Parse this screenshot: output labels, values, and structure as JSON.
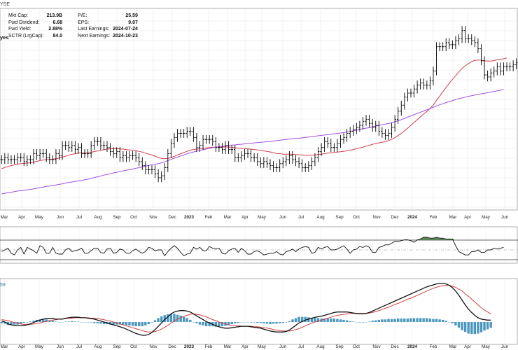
{
  "header": {
    "exchange_fragment": "YSE",
    "partial_label": "yes",
    "stats_left": [
      {
        "label": "Mkt Cap:",
        "value": "213.9B"
      },
      {
        "label": "Fwd Dividend:",
        "value": "6.68"
      },
      {
        "label": "Fwd Yield:",
        "value": "2.88%"
      },
      {
        "label": "SCTR (LrgCap):",
        "value": "84.0"
      }
    ],
    "stats_right": [
      {
        "label": "P/E:",
        "value": "25.59"
      },
      {
        "label": "EPS:",
        "value": "9.07"
      },
      {
        "label": "Last Earnings:",
        "value": "2024-07-24"
      },
      {
        "label": "Next Earnings:",
        "value": "2024-10-23"
      }
    ]
  },
  "chart_data": [
    {
      "type": "ohlc",
      "panel": "price",
      "x_labels": [
        "Mar",
        "Apr",
        "May",
        "Jun",
        "Jul",
        "Aug",
        "Sep",
        "Oct",
        "Nov",
        "Dec",
        "2023",
        "Feb",
        "Mar",
        "Apr",
        "May",
        "Jun",
        "Jul",
        "Aug",
        "Sep",
        "Oct",
        "Nov",
        "Dec",
        "2024",
        "Feb",
        "Mar",
        "Apr",
        "May",
        "Jun"
      ],
      "grid": true,
      "series": [
        {
          "kind": "ohlc",
          "color": "#000000",
          "close": [
            -3,
            -2,
            -3,
            -3,
            -3,
            -2,
            -2,
            -4,
            -3,
            -3,
            0,
            -1,
            0,
            0,
            -2,
            -3,
            -3,
            0,
            -1,
            4,
            4,
            3,
            4,
            2,
            3,
            0,
            0,
            0,
            4,
            6,
            6,
            4,
            4,
            3,
            1,
            0,
            1,
            -2,
            -1,
            -2,
            -1,
            -1,
            -2,
            -4,
            -6,
            -8,
            -8,
            -8,
            -10,
            -12,
            -11,
            -7,
            0,
            5,
            8,
            10,
            10,
            10,
            11,
            11,
            8,
            3,
            4,
            7,
            7,
            7,
            6,
            3,
            3,
            2,
            4,
            2,
            2,
            -2,
            -2,
            -1,
            0,
            0,
            -2,
            -2,
            -4,
            -5,
            -4,
            -5,
            -6,
            -7,
            -7,
            -5,
            -4,
            -3,
            -1,
            -3,
            -4,
            -5,
            -7,
            -7,
            -6,
            -4,
            -2,
            1,
            3,
            6,
            5,
            3,
            3,
            5,
            7,
            8,
            10,
            11,
            12,
            13,
            14,
            16,
            17,
            15,
            13,
            14,
            11,
            10,
            9,
            10,
            13,
            17,
            21,
            24,
            28,
            30,
            30,
            32,
            34,
            35,
            34,
            34,
            36,
            41,
            53,
            53,
            53,
            55,
            54,
            54,
            56,
            57,
            61,
            57,
            57,
            56,
            55,
            52,
            46,
            39,
            38,
            40,
            41,
            43,
            41,
            43,
            43,
            43,
            44,
            45
          ]
        },
        {
          "kind": "line",
          "name": "",
          "color": "#d04050",
          "values": [
            -7.5,
            -6.9,
            -6.4,
            -6.0,
            -5.6,
            -5.3,
            -5.0,
            -4.9,
            -4.7,
            -4.6,
            -4.2,
            -3.9,
            -3.5,
            -3.2,
            -3.0,
            -2.9,
            -2.8,
            -2.5,
            -2.3,
            -1.8,
            -1.3,
            -0.8,
            -0.4,
            -0.1,
            0.3,
            0.3,
            0.3,
            0.3,
            0.6,
            1.0,
            1.3,
            1.6,
            1.9,
            2.2,
            2.3,
            2.4,
            2.5,
            2.3,
            2.2,
            2.0,
            1.8,
            1.6,
            1.4,
            1.1,
            0.7,
            0.2,
            -0.3,
            -0.7,
            -1.3,
            -1.9,
            -2.4,
            -2.6,
            -2.4,
            -2.0,
            -1.4,
            -0.7,
            -0.1,
            0.5,
            1.1,
            1.7,
            2.0,
            2.2,
            2.4,
            2.6,
            2.8,
            3.0,
            3.1,
            3.2,
            3.2,
            3.2,
            3.3,
            3.2,
            3.1,
            2.9,
            2.7,
            2.5,
            2.4,
            2.3,
            2.2,
            2.0,
            1.8,
            1.5,
            1.3,
            1.1,
            0.8,
            0.4,
            0.1,
            -0.1,
            -0.3,
            -0.3,
            -0.3,
            -0.4,
            -0.5,
            -0.6,
            -0.7,
            -0.8,
            -0.8,
            -0.8,
            -0.7,
            -0.5,
            -0.3,
            0.0,
            0.2,
            0.4,
            0.5,
            0.7,
            0.9,
            1.1,
            1.4,
            1.7,
            2.0,
            2.4,
            2.8,
            3.2,
            3.7,
            4.1,
            4.6,
            5.0,
            5.3,
            5.6,
            5.9,
            6.4,
            7.1,
            7.9,
            8.9,
            10.0,
            11.3,
            12.6,
            14.0,
            15.4,
            16.8,
            18.2,
            19.6,
            20.9,
            22.4,
            24.1,
            26.3,
            28.5,
            30.6,
            32.8,
            34.9,
            36.8,
            38.6,
            40.6,
            42.2,
            43.5,
            44.6,
            45.6,
            46.2,
            46.4,
            46.3,
            46.0,
            45.9,
            45.9,
            46.1,
            46.5,
            46.7,
            47.0,
            47.4
          ]
        },
        {
          "kind": "line",
          "name": "",
          "color": "#a050e0",
          "values": [
            -20.0,
            -19.7,
            -19.4,
            -19.2,
            -18.9,
            -18.6,
            -18.4,
            -18.2,
            -18.0,
            -17.8,
            -17.5,
            -17.2,
            -16.9,
            -16.6,
            -16.3,
            -16.1,
            -15.8,
            -15.6,
            -15.3,
            -15.0,
            -14.6,
            -14.4,
            -14.1,
            -13.8,
            -13.6,
            -13.3,
            -13.0,
            -12.7,
            -12.3,
            -11.9,
            -11.5,
            -11.1,
            -10.7,
            -10.3,
            -10.0,
            -9.6,
            -9.3,
            -8.9,
            -8.6,
            -8.3,
            -8.0,
            -7.7,
            -7.3,
            -7.0,
            -6.6,
            -6.2,
            -5.9,
            -5.5,
            -5.3,
            -5.0,
            -4.6,
            -4.1,
            -3.5,
            -2.9,
            -2.3,
            -1.8,
            -1.2,
            -0.7,
            -0.1,
            0.4,
            0.8,
            1.2,
            1.5,
            1.9,
            2.2,
            2.6,
            2.9,
            3.2,
            3.4,
            3.6,
            3.8,
            4.0,
            4.2,
            4.3,
            4.5,
            4.6,
            4.8,
            5.0,
            5.1,
            5.3,
            5.4,
            5.6,
            5.7,
            5.9,
            6.0,
            6.2,
            6.4,
            6.6,
            6.8,
            7.0,
            7.2,
            7.4,
            7.5,
            7.6,
            7.8,
            8.0,
            8.2,
            8.4,
            8.6,
            8.8,
            9.0,
            9.2,
            9.4,
            9.6,
            9.8,
            10.0,
            10.2,
            10.4,
            10.7,
            11.0,
            11.3,
            11.6,
            12.0,
            12.3,
            12.6,
            12.9,
            13.3,
            13.6,
            14.0,
            14.3,
            14.6,
            14.9,
            15.3,
            15.8,
            16.3,
            16.8,
            17.4,
            18.1,
            18.7,
            19.3,
            19.9,
            20.5,
            21.1,
            21.7,
            22.3,
            22.9,
            23.6,
            24.2,
            24.7,
            25.3,
            25.8,
            26.3,
            26.8,
            27.2,
            27.6,
            28.0,
            28.4,
            28.7,
            29.0,
            29.3,
            29.6,
            29.9,
            30.2,
            30.5,
            30.8,
            31.1,
            31.4,
            31.8
          ]
        }
      ]
    },
    {
      "type": "line",
      "panel": "oscillator",
      "overbought_shaded": true,
      "values": [
        -0.2,
        0.0,
        0.2,
        -0.4,
        -0.6,
        0.0,
        0.3,
        -0.5,
        0.3,
        0.1,
        -0.1,
        -0.4,
        0.5,
        0.3,
        -0.4,
        -0.4,
        0.3,
        -0.4,
        -0.5,
        -0.5,
        0.0,
        0.2,
        -0.2,
        -0.1,
        0.0,
        0.2,
        -0.4,
        -0.4,
        -0.1,
        0.2,
        0.2,
        -0.3,
        -0.4,
        0.1,
        0.2,
        -0.4,
        -0.3,
        0.1,
        0.0,
        -0.4,
        -0.4,
        -0.1,
        0.1,
        -0.2,
        -0.4,
        -0.2,
        0.3,
        0.2,
        -0.1,
        0.0,
        0.0,
        -0.7,
        -0.2,
        0.2,
        0.5,
        0.2,
        -0.3,
        -0.7,
        -0.5,
        -0.4,
        0.3,
        0.1,
        0.3,
        -0.1,
        -0.1,
        0.4,
        0.2,
        0.1,
        0.2,
        -0.4,
        -0.5,
        -0.1,
        0.1,
        0.2,
        -0.3,
        0.2,
        -0.1,
        -0.5,
        -0.5,
        -0.2,
        -0.1,
        -0.3,
        -0.6,
        -0.5,
        -0.4,
        -0.4,
        -0.2,
        -0.5,
        -0.6,
        -0.2,
        -0.1,
        0.1,
        -0.2,
        0.1,
        0.3,
        0.4,
        0.3,
        -0.4,
        -0.3,
        0.3,
        0.1,
        0.3,
        0.4,
        0.0,
        0.0,
        0.1,
        0.3,
        0.5,
        0.1,
        -0.4,
        0.0,
        0.1,
        0.4,
        0.3,
        0.5,
        0.3,
        -0.3,
        -0.3,
        0.3,
        0.4,
        0.6,
        0.6,
        0.8,
        1.0,
        1.0,
        1.1,
        1.2,
        1.2,
        1.1,
        0.9,
        1.2,
        1.3,
        1.5,
        1.5,
        1.4,
        1.4,
        1.5,
        1.4,
        1.4,
        1.3,
        1.3,
        1.3,
        0.5,
        -0.2,
        -0.4,
        -0.6,
        -0.6,
        -0.2,
        -0.2,
        0.0,
        -0.3,
        -0.3,
        0.0,
        0.0,
        0.2,
        0.1,
        0.2,
        0.3
      ]
    },
    {
      "type": "macd",
      "panel": "macd",
      "axis_label_fragment": "59",
      "macd": [
        0.2,
        0.0,
        -0.4,
        -0.6,
        -0.7,
        -0.8,
        -0.8,
        -0.7,
        -0.6,
        -0.4,
        -0.1,
        0.2,
        0.4,
        0.6,
        0.7,
        0.7,
        0.7,
        0.6,
        0.6,
        0.6,
        0.8,
        0.9,
        1.0,
        1.0,
        1.0,
        0.9,
        0.9,
        0.8,
        0.7,
        0.6,
        0.4,
        0.2,
        0.0,
        -0.2,
        -0.4,
        -0.6,
        -0.8,
        -1.0,
        -1.2,
        -1.5,
        -1.8,
        -2.1,
        -2.4,
        -2.6,
        -2.8,
        -2.8,
        -2.6,
        -2.2,
        -1.6,
        -0.9,
        -0.2,
        0.5,
        1.1,
        1.7,
        2.1,
        2.3,
        2.4,
        2.4,
        2.3,
        2.1,
        1.7,
        1.3,
        0.9,
        0.5,
        0.1,
        -0.2,
        -0.5,
        -0.8,
        -1.0,
        -1.2,
        -1.3,
        -1.3,
        -1.2,
        -1.1,
        -1.0,
        -0.9,
        -0.9,
        -0.9,
        -1.0,
        -1.1,
        -1.2,
        -1.3,
        -1.5,
        -1.7,
        -1.9,
        -2.0,
        -2.1,
        -2.1,
        -2.1,
        -2.0,
        -1.7,
        -1.2,
        -0.7,
        -0.2,
        0.1,
        0.4,
        0.6,
        0.8,
        1.0,
        1.1,
        1.2,
        1.4,
        1.6,
        1.8,
        2.0,
        2.1,
        2.1,
        2.1,
        2.1,
        2.0,
        1.9,
        1.8,
        1.7,
        1.7,
        1.8,
        2.0,
        2.3,
        2.6,
        2.9,
        3.2,
        3.5,
        3.8,
        4.1,
        4.4,
        4.7,
        5.0,
        5.3,
        5.6,
        5.9,
        6.2,
        6.5,
        6.8,
        7.1,
        7.4,
        7.6,
        7.8,
        8.0,
        8.1,
        8.1,
        8.0,
        7.7,
        7.2,
        6.5,
        5.6,
        4.6,
        3.6,
        2.7,
        2.0,
        1.4,
        0.9,
        0.6,
        0.5,
        0.4,
        0.4
      ],
      "signal": [
        0.5,
        0.4,
        0.3,
        0.1,
        -0.1,
        -0.2,
        -0.4,
        -0.5,
        -0.5,
        -0.5,
        -0.4,
        -0.3,
        -0.2,
        0.0,
        0.1,
        0.3,
        0.4,
        0.5,
        0.6,
        0.6,
        0.7,
        0.8,
        0.8,
        0.9,
        0.9,
        0.9,
        0.9,
        0.9,
        0.8,
        0.8,
        0.7,
        0.6,
        0.5,
        0.3,
        0.2,
        0.0,
        -0.2,
        -0.4,
        -0.6,
        -0.8,
        -1.0,
        -1.2,
        -1.4,
        -1.6,
        -1.8,
        -2.0,
        -2.1,
        -2.1,
        -2.0,
        -1.8,
        -1.5,
        -1.1,
        -0.7,
        -0.2,
        0.2,
        0.6,
        0.9,
        1.2,
        1.4,
        1.6,
        1.7,
        1.6,
        1.5,
        1.3,
        1.1,
        0.8,
        0.5,
        0.3,
        0.0,
        -0.2,
        -0.4,
        -0.6,
        -0.7,
        -0.8,
        -0.8,
        -0.9,
        -0.9,
        -0.9,
        -0.9,
        -1.0,
        -1.0,
        -1.1,
        -1.2,
        -1.3,
        -1.4,
        -1.6,
        -1.7,
        -1.8,
        -1.9,
        -1.9,
        -1.9,
        -1.8,
        -1.6,
        -1.4,
        -1.1,
        -0.8,
        -0.5,
        -0.2,
        0.0,
        0.2,
        0.4,
        0.6,
        0.8,
        1.0,
        1.2,
        1.4,
        1.5,
        1.6,
        1.7,
        1.8,
        1.8,
        1.8,
        1.8,
        1.8,
        1.8,
        1.9,
        2.0,
        2.2,
        2.4,
        2.6,
        2.9,
        3.1,
        3.4,
        3.7,
        3.9,
        4.2,
        4.5,
        4.8,
        5.0,
        5.3,
        5.6,
        5.9,
        6.2,
        6.5,
        6.8,
        7.1,
        7.3,
        7.5,
        7.6,
        7.7,
        7.7,
        7.5,
        7.3,
        6.9,
        6.5,
        5.9,
        5.4,
        4.8,
        4.2,
        3.6,
        3.0,
        2.5,
        2.1,
        1.7
      ]
    }
  ]
}
